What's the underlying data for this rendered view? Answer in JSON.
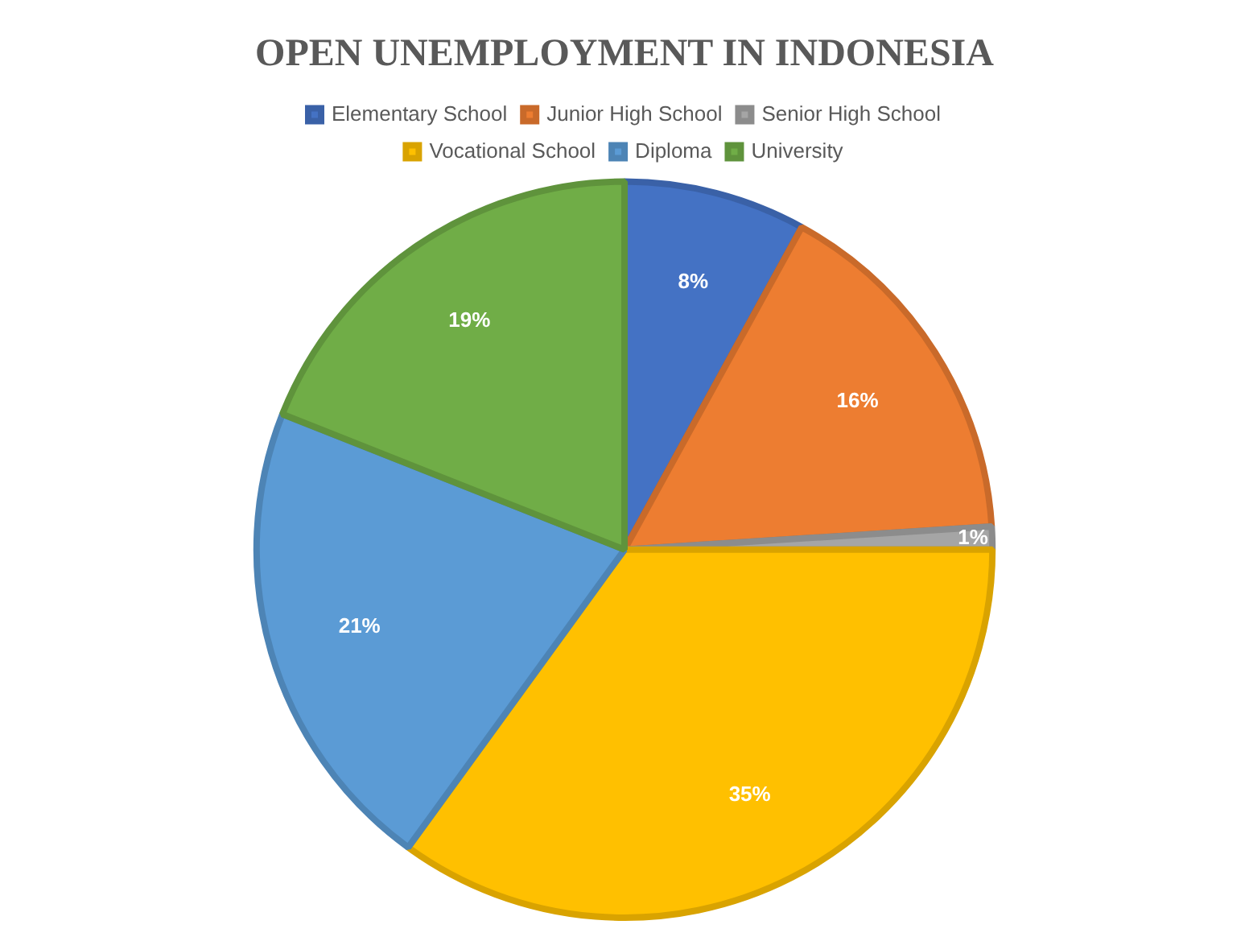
{
  "chart_data": {
    "type": "pie",
    "title": "OPEN UNEMPLOYMENT IN INDONESIA",
    "categories": [
      "Elementary School",
      "Junior High School",
      "Senior High School",
      "Vocational School",
      "Diploma",
      "University"
    ],
    "values": [
      8,
      16,
      1,
      35,
      21,
      19
    ],
    "colors": [
      "#4472c4",
      "#ed7d31",
      "#a5a5a5",
      "#ffc000",
      "#5b9bd5",
      "#70ad47"
    ],
    "value_labels": [
      "8%",
      "16%",
      "1%",
      "35%",
      "21%",
      "19%"
    ],
    "legend": "top"
  }
}
